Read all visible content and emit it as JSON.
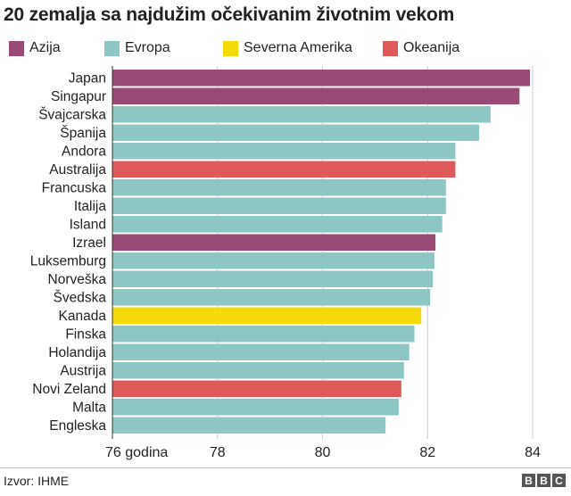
{
  "chart_data": {
    "type": "bar",
    "orientation": "horizontal",
    "title": "20 zemalja sa najdužim očekivanim životnim vekom",
    "xlabel": "",
    "ylabel": "",
    "xlim": [
      76,
      84
    ],
    "x_ticks": [
      {
        "value": 76,
        "label": "76 godina"
      },
      {
        "value": 78,
        "label": "78"
      },
      {
        "value": 80,
        "label": "80"
      },
      {
        "value": 82,
        "label": "82"
      },
      {
        "value": 84,
        "label": "84"
      }
    ],
    "grid": "vertical",
    "legend_position": "top",
    "legend": [
      {
        "key": "asia",
        "label": "Azija",
        "color": "#994a75"
      },
      {
        "key": "europe",
        "label": "Evropa",
        "color": "#8cc7c3"
      },
      {
        "key": "north_america",
        "label": "Severna Amerika",
        "color": "#f5d908"
      },
      {
        "key": "oceania",
        "label": "Okeanija",
        "color": "#de5958"
      }
    ],
    "categories": [
      "Japan",
      "Singapur",
      "Švajcarska",
      "Španija",
      "Andora",
      "Australija",
      "Francuska",
      "Italija",
      "Island",
      "Izrael",
      "Luksemburg",
      "Norveška",
      "Švedska",
      "Kanada",
      "Finska",
      "Holandija",
      "Austrija",
      "Novi Zeland",
      "Malta",
      "Engleska"
    ],
    "values": [
      83.95,
      83.75,
      83.2,
      82.98,
      82.53,
      82.53,
      82.35,
      82.35,
      82.28,
      82.15,
      82.13,
      82.1,
      82.05,
      81.88,
      81.75,
      81.65,
      81.55,
      81.5,
      81.45,
      81.2
    ],
    "groups": [
      "asia",
      "asia",
      "europe",
      "europe",
      "europe",
      "oceania",
      "europe",
      "europe",
      "europe",
      "asia",
      "europe",
      "europe",
      "europe",
      "north_america",
      "europe",
      "europe",
      "europe",
      "oceania",
      "europe",
      "europe"
    ]
  },
  "footer": {
    "source": "Izvor: IHME",
    "logo_letters": [
      "B",
      "B",
      "C"
    ]
  }
}
